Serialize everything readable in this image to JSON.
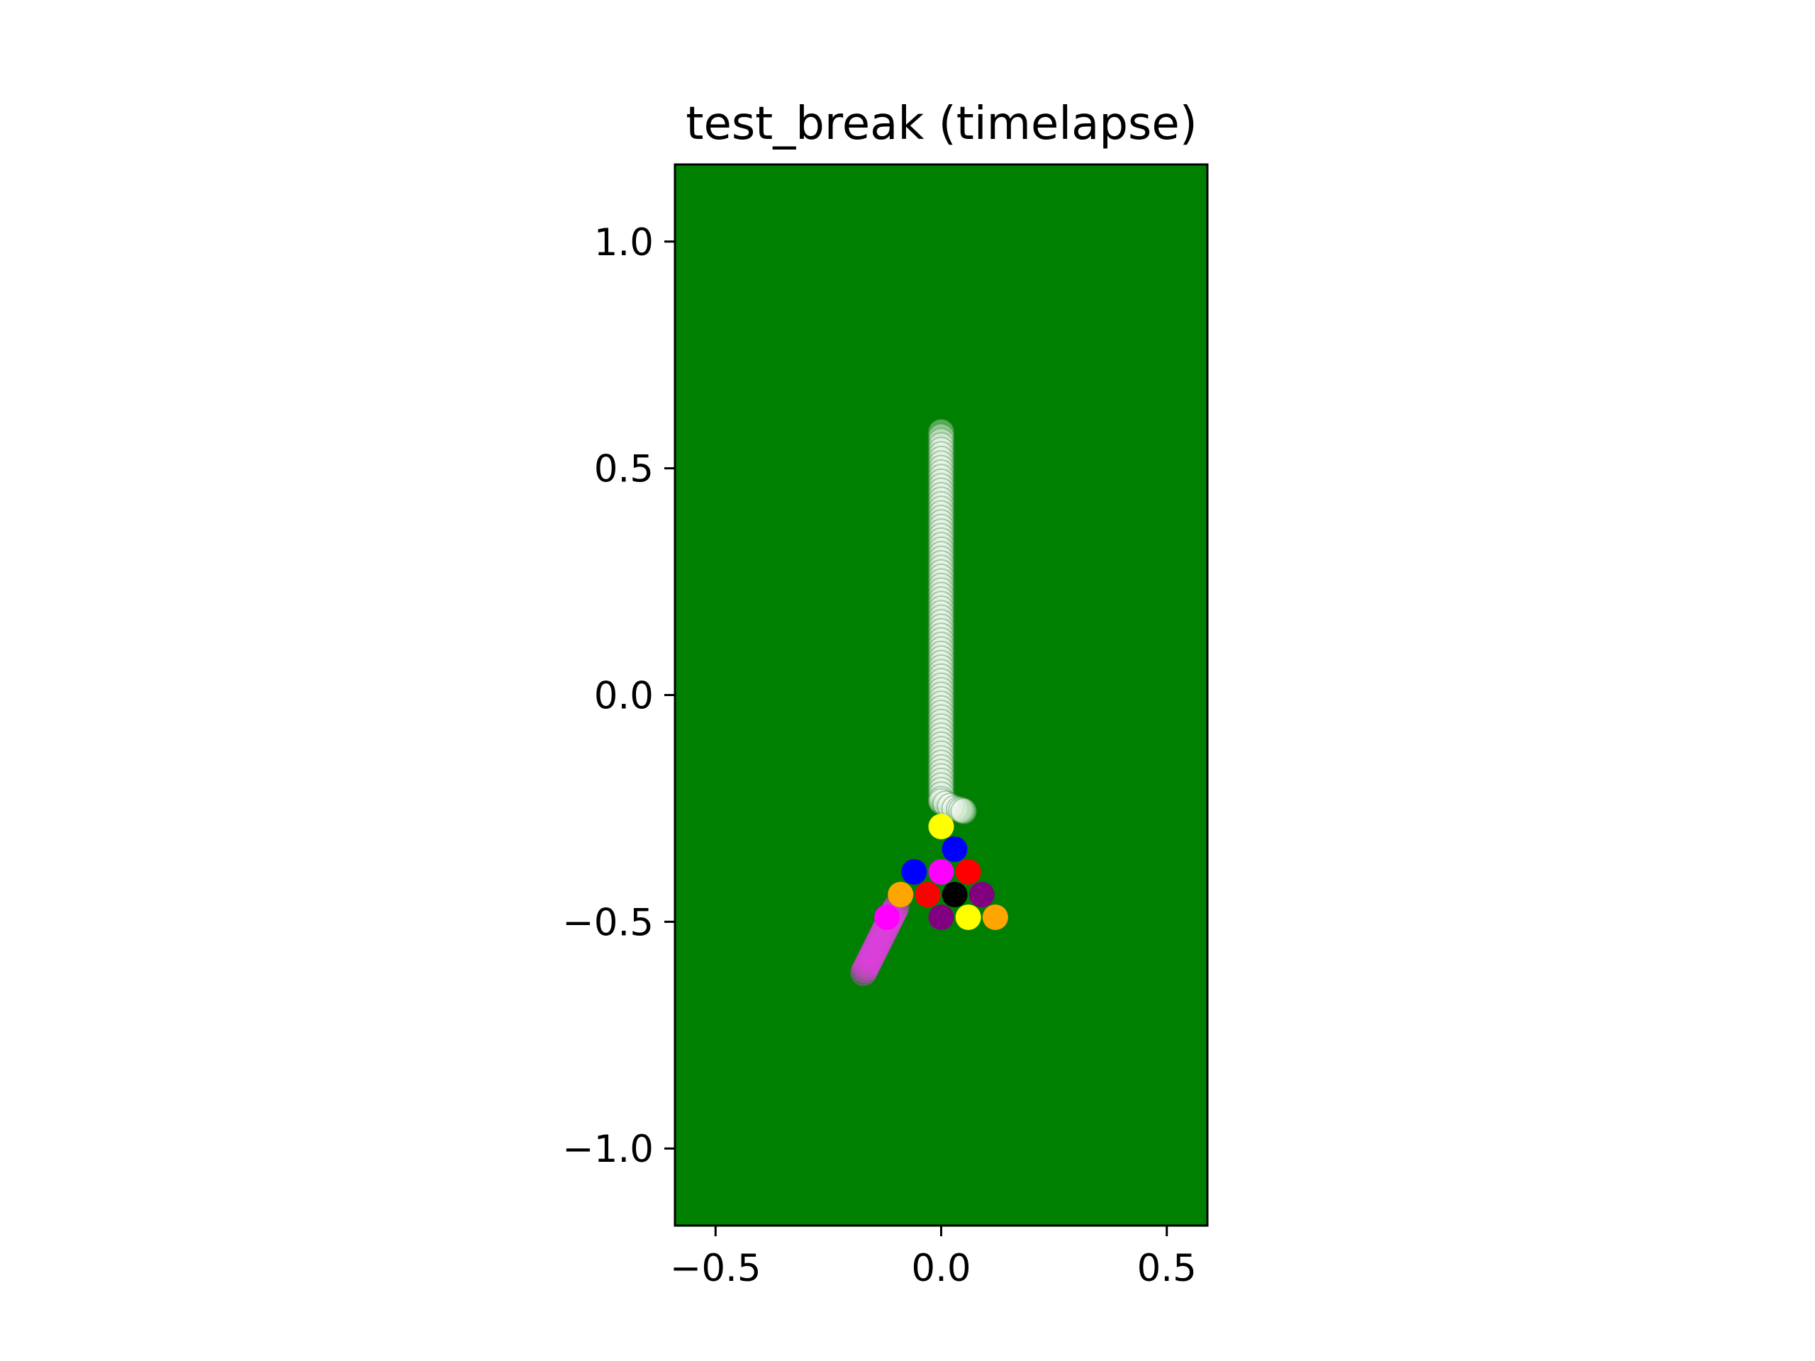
{
  "chart_data": {
    "type": "scatter",
    "title": "test_break (timelapse)",
    "xlabel": "",
    "ylabel": "",
    "xlim": [
      -0.59,
      0.59
    ],
    "ylim": [
      -1.17,
      1.17
    ],
    "x_ticks": [
      -0.5,
      0.0,
      0.5
    ],
    "x_tick_labels": [
      "−0.5",
      "0.0",
      "0.5"
    ],
    "y_ticks": [
      1.0,
      0.5,
      0.0,
      -0.5,
      -1.0
    ],
    "y_tick_labels": [
      "1.0",
      "0.5",
      "0.0",
      "−0.5",
      "−1.0"
    ],
    "grid": false,
    "legend": "none",
    "colors": {
      "table": "#008000",
      "axes_edge": "#000000",
      "cue_ball": "#ffffff",
      "trail_edge": "#2e7d32"
    },
    "series": [
      {
        "color": "#ffffff",
        "trail": true,
        "x": [
          0.0,
          0.0,
          0.0,
          0.0,
          0.0,
          0.0,
          0.0,
          0.0,
          0.0,
          0.0,
          0.0,
          0.0,
          0.0,
          0.0,
          0.0,
          0.0,
          0.0,
          0.0,
          0.0,
          0.0,
          0.0,
          0.0,
          0.0,
          0.0,
          0.0,
          0.0,
          0.0,
          0.0,
          0.0,
          0.0,
          0.0,
          0.0,
          0.0,
          0.0,
          0.0,
          0.0,
          0.0,
          0.0,
          0.0,
          0.0,
          0.0,
          0.0,
          0.0,
          0.0,
          0.0,
          0.0,
          0.0,
          0.0,
          0.0,
          0.0,
          0.0,
          0.0,
          0.0,
          0.0,
          0.0,
          0.0,
          0.0,
          0.0,
          0.0,
          0.0,
          0.0,
          0.0,
          0.0,
          0.0,
          0.0,
          0.0,
          0.0,
          0.0,
          0.0,
          0.0,
          0.0,
          0.0,
          0.0,
          0.0,
          0.0,
          0.0,
          0.0,
          0.0,
          0.0,
          0.0,
          0.0,
          0.0,
          0.0,
          0.01,
          0.02,
          0.03,
          0.04,
          0.045,
          0.05
        ],
        "y": [
          0.58,
          0.57,
          0.56,
          0.55,
          0.54,
          0.53,
          0.52,
          0.51,
          0.5,
          0.49,
          0.48,
          0.47,
          0.46,
          0.45,
          0.44,
          0.43,
          0.42,
          0.41,
          0.4,
          0.39,
          0.38,
          0.37,
          0.36,
          0.35,
          0.34,
          0.33,
          0.32,
          0.31,
          0.3,
          0.29,
          0.28,
          0.27,
          0.26,
          0.25,
          0.24,
          0.23,
          0.22,
          0.21,
          0.2,
          0.19,
          0.18,
          0.17,
          0.16,
          0.15,
          0.14,
          0.13,
          0.12,
          0.11,
          0.1,
          0.09,
          0.08,
          0.07,
          0.06,
          0.05,
          0.04,
          0.03,
          0.02,
          0.01,
          0.0,
          -0.01,
          -0.02,
          -0.03,
          -0.04,
          -0.05,
          -0.06,
          -0.07,
          -0.08,
          -0.09,
          -0.1,
          -0.11,
          -0.12,
          -0.13,
          -0.14,
          -0.15,
          -0.16,
          -0.17,
          -0.18,
          -0.19,
          -0.2,
          -0.21,
          -0.22,
          -0.23,
          -0.235,
          -0.24,
          -0.245,
          -0.25,
          -0.252,
          -0.254,
          -0.256
        ]
      },
      {
        "color": "#e040e0",
        "trail": true,
        "x": [
          -0.172,
          -0.169,
          -0.166,
          -0.163,
          -0.16,
          -0.157,
          -0.154,
          -0.151,
          -0.148,
          -0.145,
          -0.142,
          -0.139,
          -0.136,
          -0.133,
          -0.13,
          -0.127,
          -0.124,
          -0.121,
          -0.118,
          -0.115,
          -0.112,
          -0.109,
          -0.106,
          -0.103,
          -0.1
        ],
        "y": [
          -0.612,
          -0.606,
          -0.6,
          -0.594,
          -0.588,
          -0.582,
          -0.576,
          -0.57,
          -0.564,
          -0.558,
          -0.552,
          -0.546,
          -0.54,
          -0.534,
          -0.528,
          -0.522,
          -0.516,
          -0.51,
          -0.504,
          -0.498,
          -0.492,
          -0.486,
          -0.48,
          -0.474,
          -0.468
        ]
      },
      {
        "color": "#ffff00",
        "x": [
          0.0
        ],
        "y": [
          -0.29
        ]
      },
      {
        "color": "#0000ff",
        "x": [
          0.03
        ],
        "y": [
          -0.34
        ]
      },
      {
        "color": "#0000ff",
        "x": [
          -0.06
        ],
        "y": [
          -0.39
        ]
      },
      {
        "color": "#ff00ff",
        "x": [
          0.0
        ],
        "y": [
          -0.39
        ]
      },
      {
        "color": "#ff0000",
        "x": [
          0.06
        ],
        "y": [
          -0.39
        ]
      },
      {
        "color": "#ffa500",
        "x": [
          -0.09
        ],
        "y": [
          -0.44
        ]
      },
      {
        "color": "#ff0000",
        "x": [
          -0.03
        ],
        "y": [
          -0.44
        ]
      },
      {
        "color": "#000000",
        "x": [
          0.03
        ],
        "y": [
          -0.44
        ]
      },
      {
        "color": "#800080",
        "x": [
          0.09
        ],
        "y": [
          -0.44
        ]
      },
      {
        "color": "#ff00ff",
        "x": [
          -0.12
        ],
        "y": [
          -0.49
        ]
      },
      {
        "color": "#800080",
        "x": [
          0.0
        ],
        "y": [
          -0.49
        ]
      },
      {
        "color": "#ffff00",
        "x": [
          0.06
        ],
        "y": [
          -0.49
        ]
      },
      {
        "color": "#ffa500",
        "x": [
          0.12
        ],
        "y": [
          -0.49
        ]
      }
    ]
  }
}
